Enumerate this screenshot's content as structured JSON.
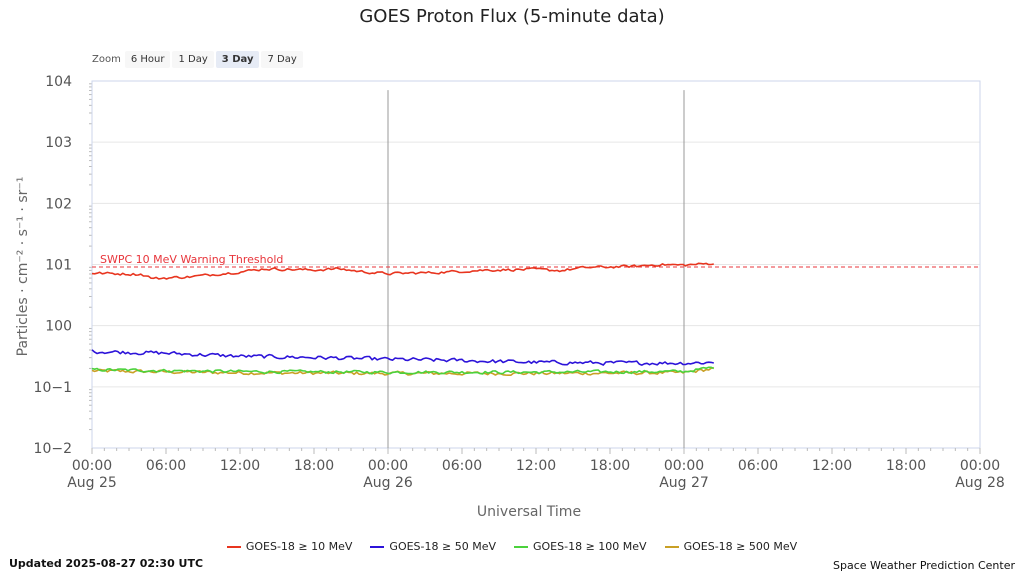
{
  "chart_data": {
    "type": "line",
    "title": "GOES Proton Flux (5-minute data)",
    "xlabel": "Universal Time",
    "ylabel": "Particles · cm⁻² · s⁻¹ · sr⁻¹",
    "yscale": "log",
    "ylim_exp": [
      -2,
      4
    ],
    "y_ticks": [
      {
        "exp": 4,
        "label": "104"
      },
      {
        "exp": 3,
        "label": "103"
      },
      {
        "exp": 2,
        "label": "102"
      },
      {
        "exp": 1,
        "label": "101"
      },
      {
        "exp": 0,
        "label": "100"
      },
      {
        "exp": -1,
        "label": "10−1"
      },
      {
        "exp": -2,
        "label": "10−2"
      }
    ],
    "x_range_hours": [
      0,
      72
    ],
    "x_ticks": [
      {
        "hour": 0,
        "time": "00:00",
        "date": "Aug 25"
      },
      {
        "hour": 6,
        "time": "06:00",
        "date": ""
      },
      {
        "hour": 12,
        "time": "12:00",
        "date": ""
      },
      {
        "hour": 18,
        "time": "18:00",
        "date": ""
      },
      {
        "hour": 24,
        "time": "00:00",
        "date": "Aug 26"
      },
      {
        "hour": 30,
        "time": "06:00",
        "date": ""
      },
      {
        "hour": 36,
        "time": "12:00",
        "date": ""
      },
      {
        "hour": 42,
        "time": "18:00",
        "date": ""
      },
      {
        "hour": 48,
        "time": "00:00",
        "date": "Aug 27"
      },
      {
        "hour": 54,
        "time": "06:00",
        "date": ""
      },
      {
        "hour": 60,
        "time": "12:00",
        "date": ""
      },
      {
        "hour": 66,
        "time": "18:00",
        "date": ""
      },
      {
        "hour": 72,
        "time": "00:00",
        "date": "Aug 28"
      }
    ],
    "day_lines_hours": [
      24,
      48
    ],
    "threshold": {
      "label": "SWPC 10 MeV Warning Threshold",
      "exp": 0.96,
      "color": "#e8353b"
    },
    "series": [
      {
        "name": "GOES-18 ≥ 10 MeV",
        "color": "#e8351f",
        "noise": 0.03,
        "points": [
          [
            0,
            0.86
          ],
          [
            4,
            0.84
          ],
          [
            5,
            0.77
          ],
          [
            8,
            0.8
          ],
          [
            10,
            0.84
          ],
          [
            12,
            0.88
          ],
          [
            14,
            0.93
          ],
          [
            16,
            0.92
          ],
          [
            18,
            0.91
          ],
          [
            20,
            0.93
          ],
          [
            22,
            0.88
          ],
          [
            24,
            0.85
          ],
          [
            28,
            0.87
          ],
          [
            32,
            0.91
          ],
          [
            36,
            0.92
          ],
          [
            38,
            0.9
          ],
          [
            40,
            0.95
          ],
          [
            44,
            0.97
          ],
          [
            46,
            1.0
          ],
          [
            48,
            0.99
          ],
          [
            50.5,
            1.02
          ]
        ]
      },
      {
        "name": "GOES-18 ≥ 50 MeV",
        "color": "#2c13d9",
        "noise": 0.045,
        "points": [
          [
            0,
            -0.42
          ],
          [
            6,
            -0.45
          ],
          [
            12,
            -0.5
          ],
          [
            18,
            -0.52
          ],
          [
            24,
            -0.55
          ],
          [
            30,
            -0.57
          ],
          [
            36,
            -0.6
          ],
          [
            42,
            -0.61
          ],
          [
            48,
            -0.61
          ],
          [
            50.5,
            -0.6
          ]
        ]
      },
      {
        "name": "GOES-18 ≥ 100 MeV",
        "color": "#4bd23c",
        "noise": 0.035,
        "points": [
          [
            0,
            -0.72
          ],
          [
            12,
            -0.75
          ],
          [
            24,
            -0.76
          ],
          [
            36,
            -0.76
          ],
          [
            48,
            -0.75
          ],
          [
            50.5,
            -0.68
          ]
        ]
      },
      {
        "name": "GOES-18 ≥ 500 MeV",
        "color": "#c9a025",
        "noise": 0.04,
        "points": [
          [
            0,
            -0.74
          ],
          [
            12,
            -0.77
          ],
          [
            24,
            -0.78
          ],
          [
            36,
            -0.78
          ],
          [
            48,
            -0.77
          ],
          [
            50.5,
            -0.7
          ]
        ]
      }
    ]
  },
  "zoom": {
    "label": "Zoom",
    "options": [
      "6 Hour",
      "1 Day",
      "3 Day",
      "7 Day"
    ],
    "active": "3 Day"
  },
  "footer": {
    "updated": "Updated 2025-08-27 02:30 UTC",
    "credit": "Space Weather Prediction Center"
  },
  "colors": {
    "grid": "#e6e6e6",
    "axis": "#ccd6eb",
    "day_line": "#999999"
  }
}
